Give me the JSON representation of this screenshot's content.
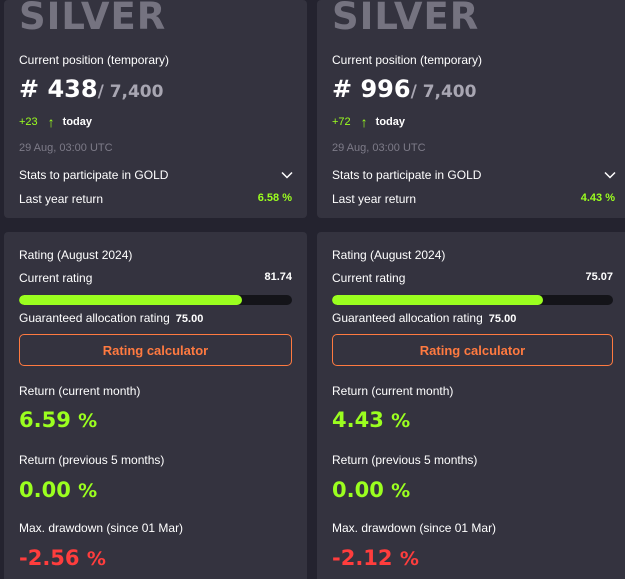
{
  "colors": {
    "page_bg": "#24232f",
    "card_bg": "#34333f",
    "positive": "#9bff1f",
    "negative": "#ff3d3d",
    "accent": "#ff7a40",
    "tier_text": "#757380"
  },
  "icons": {
    "up": "arrow-up-icon",
    "expand": "chevron-down-icon"
  },
  "portfolios": [
    {
      "tier": "SILVER",
      "position_label": "Current position (temporary)",
      "rank": "# 438",
      "total": "/ 7,400",
      "delta": "+23",
      "delta_period": "today",
      "timestamp": "29 Aug, 03:00 UTC",
      "stats_label": "Stats to participate in GOLD",
      "last_year_label": "Last year return",
      "last_year_value": "6.58 %",
      "rating_header": "Rating (August 2024)",
      "current_rating_label": "Current rating",
      "current_rating_value": "81.74",
      "rating_fraction": 0.8174,
      "guaranteed_label": "Guaranteed allocation rating",
      "guaranteed_value": "75.00",
      "calculator_label": "Rating calculator",
      "return_month_label": "Return (current month)",
      "return_month_value": "6.59",
      "return_prev_label": "Return (previous 5 months)",
      "return_prev_value": "0.00",
      "drawdown_label": "Max. drawdown (since 01 Mar)",
      "drawdown_value": "-2.56",
      "percent": "%"
    },
    {
      "tier": "SILVER",
      "position_label": "Current position (temporary)",
      "rank": "# 996",
      "total": "/ 7,400",
      "delta": "+72",
      "delta_period": "today",
      "timestamp": "29 Aug, 03:00 UTC",
      "stats_label": "Stats to participate in GOLD",
      "last_year_label": "Last year return",
      "last_year_value": "4.43 %",
      "rating_header": "Rating (August 2024)",
      "current_rating_label": "Current rating",
      "current_rating_value": "75.07",
      "rating_fraction": 0.7507,
      "guaranteed_label": "Guaranteed allocation rating",
      "guaranteed_value": "75.00",
      "calculator_label": "Rating calculator",
      "return_month_label": "Return (current month)",
      "return_month_value": "4.43",
      "return_prev_label": "Return (previous 5 months)",
      "return_prev_value": "0.00",
      "drawdown_label": "Max. drawdown (since 01 Mar)",
      "drawdown_value": "-2.12",
      "percent": "%"
    }
  ]
}
